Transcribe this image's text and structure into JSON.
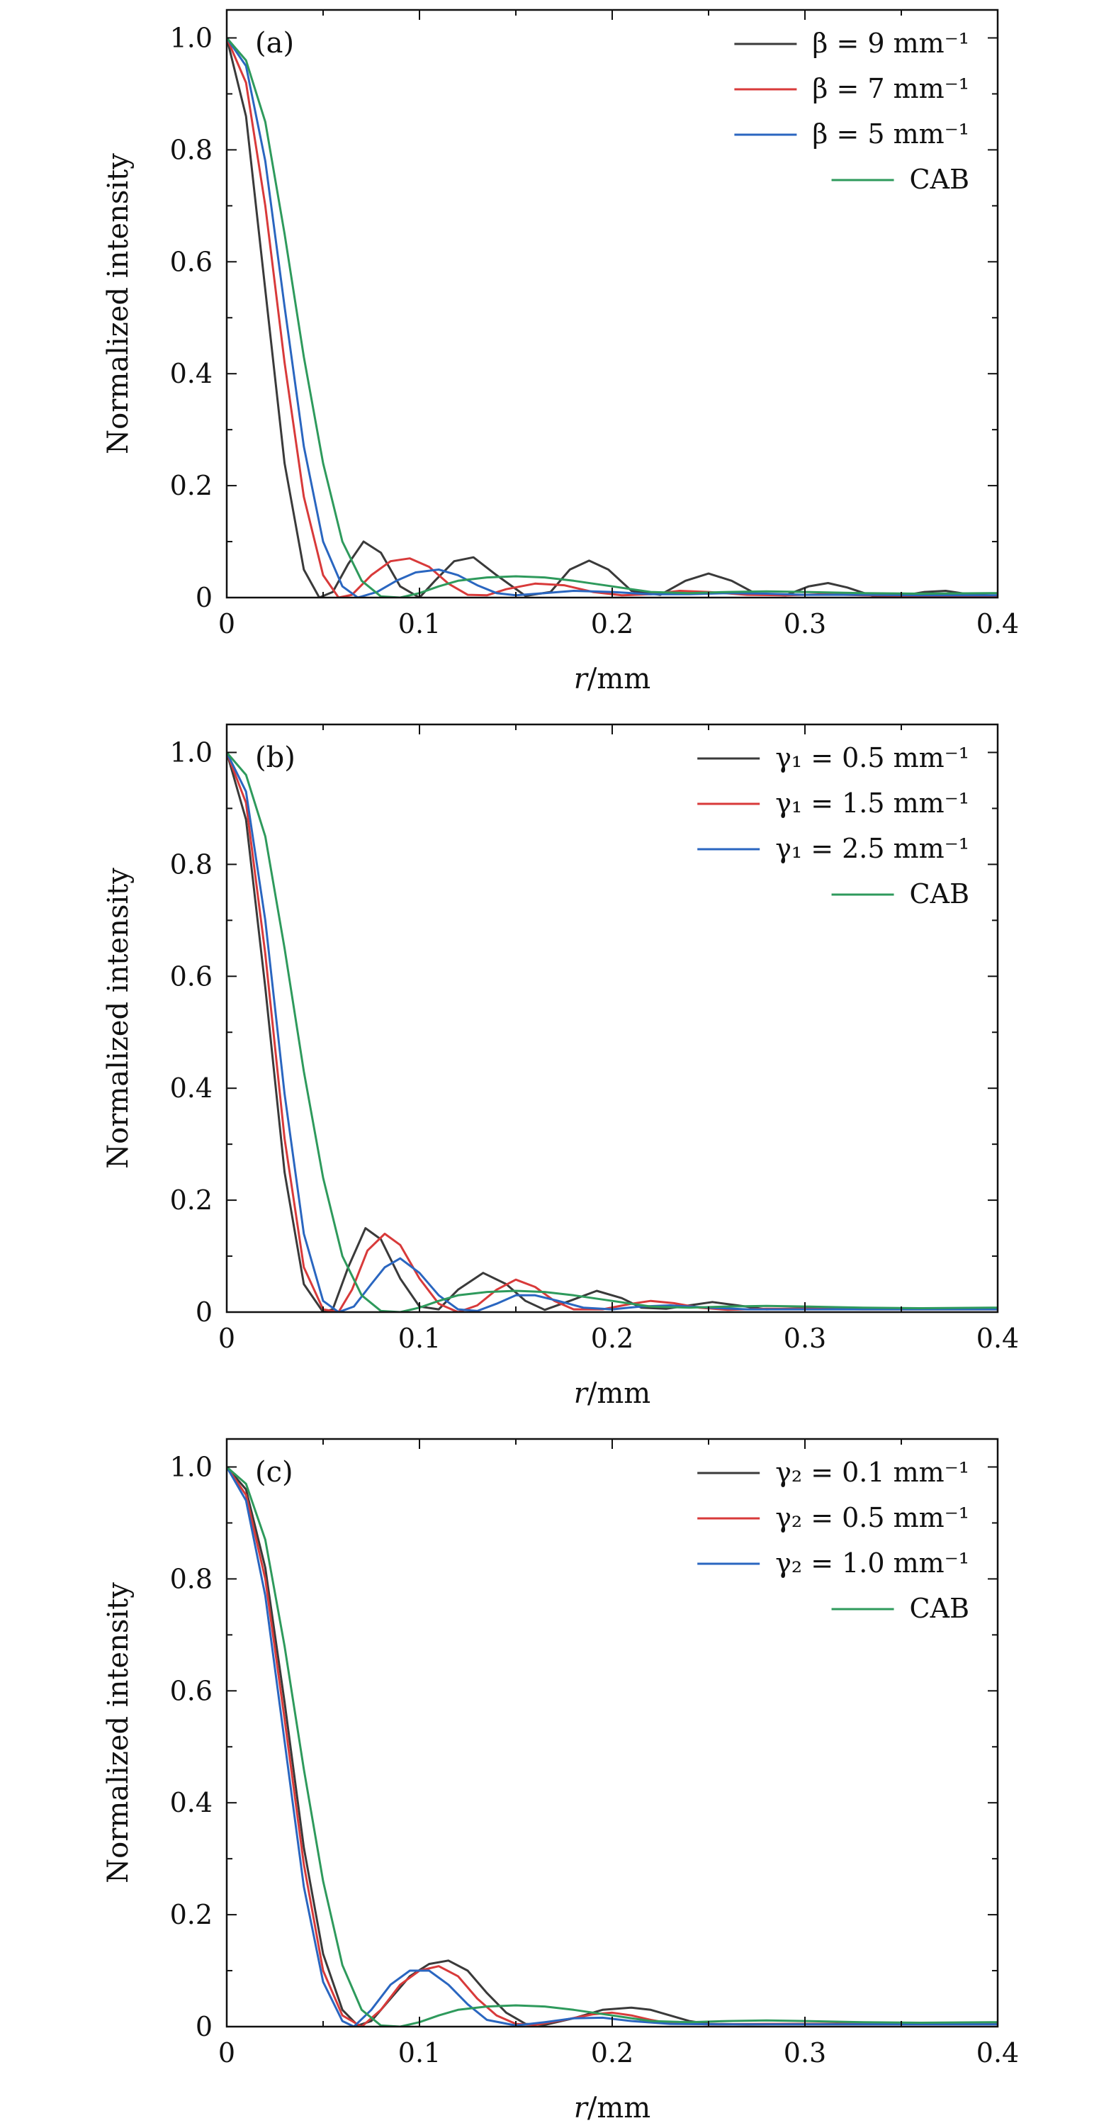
{
  "chart_data": [
    {
      "type": "line",
      "panel_label": "(a)",
      "xlabel": "r/mm",
      "ylabel": "Normalized intensity",
      "xlim": [
        0,
        0.4
      ],
      "ylim": [
        0,
        1.05
      ],
      "x_ticks": [
        "0",
        "0.1",
        "0.2",
        "0.3",
        "0.4"
      ],
      "y_ticks": [
        "0",
        "0.2",
        "0.4",
        "0.6",
        "0.8",
        "1.0"
      ],
      "legend_position": "top-right",
      "series": [
        {
          "name": "β = 9 mm⁻¹",
          "color": "#3a3a3a",
          "x": [
            0,
            0.01,
            0.02,
            0.03,
            0.04,
            0.048,
            0.055,
            0.063,
            0.071,
            0.08,
            0.09,
            0.1,
            0.108,
            0.118,
            0.128,
            0.14,
            0.155,
            0.168,
            0.178,
            0.188,
            0.198,
            0.21,
            0.225,
            0.238,
            0.25,
            0.262,
            0.275,
            0.29,
            0.302,
            0.312,
            0.322,
            0.335,
            0.35,
            0.362,
            0.373,
            0.385,
            0.4
          ],
          "values": [
            1.0,
            0.86,
            0.55,
            0.24,
            0.05,
            0.0,
            0.01,
            0.06,
            0.1,
            0.08,
            0.02,
            0.0,
            0.03,
            0.065,
            0.072,
            0.04,
            0.003,
            0.01,
            0.05,
            0.066,
            0.05,
            0.012,
            0.005,
            0.03,
            0.043,
            0.03,
            0.006,
            0.004,
            0.02,
            0.026,
            0.018,
            0.003,
            0.003,
            0.01,
            0.012,
            0.006,
            0.003
          ]
        },
        {
          "name": "β = 7 mm⁻¹",
          "color": "#d83a3a",
          "x": [
            0,
            0.01,
            0.02,
            0.03,
            0.04,
            0.05,
            0.058,
            0.065,
            0.075,
            0.085,
            0.095,
            0.105,
            0.115,
            0.125,
            0.135,
            0.145,
            0.16,
            0.175,
            0.19,
            0.205,
            0.22,
            0.235,
            0.25,
            0.27,
            0.29,
            0.31,
            0.33,
            0.36,
            0.4
          ],
          "values": [
            1.0,
            0.92,
            0.7,
            0.42,
            0.18,
            0.04,
            0.0,
            0.005,
            0.04,
            0.065,
            0.07,
            0.055,
            0.025,
            0.005,
            0.004,
            0.015,
            0.025,
            0.022,
            0.01,
            0.004,
            0.006,
            0.012,
            0.01,
            0.005,
            0.004,
            0.006,
            0.004,
            0.003,
            0.003
          ]
        },
        {
          "name": "β = 5 mm⁻¹",
          "color": "#2a66c0",
          "x": [
            0,
            0.01,
            0.02,
            0.03,
            0.04,
            0.05,
            0.06,
            0.068,
            0.078,
            0.088,
            0.098,
            0.11,
            0.12,
            0.13,
            0.14,
            0.15,
            0.165,
            0.18,
            0.2,
            0.22,
            0.24,
            0.26,
            0.28,
            0.3,
            0.33,
            0.36,
            0.4
          ],
          "values": [
            1.0,
            0.95,
            0.78,
            0.52,
            0.27,
            0.1,
            0.02,
            0.0,
            0.01,
            0.03,
            0.045,
            0.05,
            0.04,
            0.022,
            0.008,
            0.004,
            0.008,
            0.012,
            0.01,
            0.006,
            0.006,
            0.008,
            0.007,
            0.005,
            0.005,
            0.004,
            0.004
          ]
        },
        {
          "name": "CAB",
          "color": "#2e9a5c",
          "x": [
            0,
            0.01,
            0.02,
            0.03,
            0.04,
            0.05,
            0.06,
            0.07,
            0.08,
            0.09,
            0.1,
            0.11,
            0.12,
            0.135,
            0.15,
            0.165,
            0.18,
            0.2,
            0.22,
            0.24,
            0.26,
            0.28,
            0.3,
            0.33,
            0.36,
            0.4
          ],
          "values": [
            1.0,
            0.96,
            0.85,
            0.65,
            0.43,
            0.24,
            0.1,
            0.03,
            0.002,
            0.0,
            0.008,
            0.02,
            0.03,
            0.036,
            0.038,
            0.036,
            0.03,
            0.02,
            0.01,
            0.008,
            0.01,
            0.011,
            0.01,
            0.008,
            0.007,
            0.008
          ]
        }
      ]
    },
    {
      "type": "line",
      "panel_label": "(b)",
      "xlabel": "r/mm",
      "ylabel": "Normalized intensity",
      "xlim": [
        0,
        0.4
      ],
      "ylim": [
        0,
        1.05
      ],
      "x_ticks": [
        "0",
        "0.1",
        "0.2",
        "0.3",
        "0.4"
      ],
      "y_ticks": [
        "0",
        "0.2",
        "0.4",
        "0.6",
        "0.8",
        "1.0"
      ],
      "legend_position": "top-right",
      "series": [
        {
          "name": "γ₁ = 0.5 mm⁻¹",
          "color": "#3a3a3a",
          "x": [
            0,
            0.01,
            0.02,
            0.03,
            0.04,
            0.05,
            0.055,
            0.063,
            0.072,
            0.08,
            0.09,
            0.1,
            0.11,
            0.12,
            0.133,
            0.145,
            0.155,
            0.165,
            0.178,
            0.192,
            0.205,
            0.215,
            0.228,
            0.24,
            0.252,
            0.265,
            0.28,
            0.3,
            0.33,
            0.36,
            0.4
          ],
          "values": [
            1.0,
            0.88,
            0.58,
            0.25,
            0.05,
            0.0,
            0.005,
            0.08,
            0.15,
            0.13,
            0.06,
            0.01,
            0.005,
            0.04,
            0.07,
            0.05,
            0.02,
            0.004,
            0.02,
            0.038,
            0.025,
            0.008,
            0.006,
            0.012,
            0.018,
            0.012,
            0.005,
            0.007,
            0.006,
            0.006,
            0.006
          ]
        },
        {
          "name": "γ₁ = 1.5 mm⁻¹",
          "color": "#d83a3a",
          "x": [
            0,
            0.01,
            0.02,
            0.03,
            0.04,
            0.05,
            0.058,
            0.065,
            0.073,
            0.082,
            0.09,
            0.1,
            0.11,
            0.12,
            0.13,
            0.14,
            0.15,
            0.16,
            0.17,
            0.18,
            0.195,
            0.21,
            0.22,
            0.232,
            0.245,
            0.26,
            0.28,
            0.3,
            0.33,
            0.36,
            0.4
          ],
          "values": [
            1.0,
            0.91,
            0.64,
            0.31,
            0.08,
            0.005,
            0.0,
            0.04,
            0.11,
            0.14,
            0.12,
            0.06,
            0.015,
            0.0,
            0.012,
            0.04,
            0.058,
            0.045,
            0.02,
            0.005,
            0.005,
            0.015,
            0.02,
            0.016,
            0.008,
            0.004,
            0.006,
            0.006,
            0.005,
            0.005,
            0.005
          ]
        },
        {
          "name": "γ₁ = 2.5 mm⁻¹",
          "color": "#2a66c0",
          "x": [
            0,
            0.01,
            0.02,
            0.03,
            0.04,
            0.05,
            0.058,
            0.066,
            0.075,
            0.082,
            0.09,
            0.1,
            0.11,
            0.12,
            0.13,
            0.14,
            0.15,
            0.16,
            0.172,
            0.185,
            0.2,
            0.215,
            0.23,
            0.25,
            0.27,
            0.3,
            0.33,
            0.36,
            0.4
          ],
          "values": [
            1.0,
            0.93,
            0.7,
            0.39,
            0.14,
            0.02,
            0.0,
            0.01,
            0.05,
            0.08,
            0.096,
            0.07,
            0.03,
            0.005,
            0.002,
            0.015,
            0.03,
            0.03,
            0.02,
            0.008,
            0.005,
            0.01,
            0.012,
            0.008,
            0.005,
            0.005,
            0.005,
            0.005,
            0.005
          ]
        },
        {
          "name": "CAB",
          "color": "#2e9a5c",
          "x": [
            0,
            0.01,
            0.02,
            0.03,
            0.04,
            0.05,
            0.06,
            0.07,
            0.08,
            0.09,
            0.1,
            0.11,
            0.12,
            0.135,
            0.15,
            0.165,
            0.18,
            0.2,
            0.22,
            0.24,
            0.26,
            0.28,
            0.3,
            0.33,
            0.36,
            0.4
          ],
          "values": [
            1.0,
            0.96,
            0.85,
            0.65,
            0.43,
            0.24,
            0.1,
            0.03,
            0.002,
            0.0,
            0.008,
            0.02,
            0.03,
            0.036,
            0.038,
            0.036,
            0.03,
            0.02,
            0.01,
            0.008,
            0.01,
            0.011,
            0.01,
            0.008,
            0.007,
            0.008
          ]
        }
      ]
    },
    {
      "type": "line",
      "panel_label": "(c)",
      "xlabel": "r/mm",
      "ylabel": "Normalized intensity",
      "xlim": [
        0,
        0.4
      ],
      "ylim": [
        0,
        1.05
      ],
      "x_ticks": [
        "0",
        "0.1",
        "0.2",
        "0.3",
        "0.4"
      ],
      "y_ticks": [
        "0",
        "0.2",
        "0.4",
        "0.6",
        "0.8",
        "1.0"
      ],
      "legend_position": "top-right",
      "series": [
        {
          "name": "γ₂ = 0.1 mm⁻¹",
          "color": "#3a3a3a",
          "x": [
            0,
            0.01,
            0.02,
            0.03,
            0.04,
            0.05,
            0.06,
            0.068,
            0.075,
            0.085,
            0.095,
            0.105,
            0.115,
            0.125,
            0.135,
            0.145,
            0.155,
            0.165,
            0.18,
            0.195,
            0.21,
            0.22,
            0.23,
            0.24,
            0.25,
            0.27,
            0.3,
            0.33,
            0.36,
            0.4
          ],
          "values": [
            1.0,
            0.96,
            0.82,
            0.58,
            0.32,
            0.13,
            0.03,
            0.002,
            0.01,
            0.05,
            0.09,
            0.112,
            0.118,
            0.1,
            0.06,
            0.025,
            0.005,
            0.003,
            0.015,
            0.03,
            0.034,
            0.03,
            0.02,
            0.01,
            0.005,
            0.004,
            0.005,
            0.005,
            0.005,
            0.005
          ]
        },
        {
          "name": "γ₂ = 0.5 mm⁻¹",
          "color": "#d83a3a",
          "x": [
            0,
            0.01,
            0.02,
            0.03,
            0.04,
            0.05,
            0.06,
            0.07,
            0.08,
            0.09,
            0.1,
            0.11,
            0.12,
            0.13,
            0.14,
            0.15,
            0.16,
            0.175,
            0.19,
            0.2,
            0.21,
            0.22,
            0.23,
            0.25,
            0.28,
            0.3,
            0.33,
            0.36,
            0.4
          ],
          "values": [
            1.0,
            0.95,
            0.8,
            0.55,
            0.29,
            0.1,
            0.02,
            0.0,
            0.03,
            0.075,
            0.1,
            0.108,
            0.09,
            0.05,
            0.02,
            0.005,
            0.003,
            0.012,
            0.022,
            0.025,
            0.02,
            0.012,
            0.006,
            0.004,
            0.005,
            0.005,
            0.005,
            0.005,
            0.005
          ]
        },
        {
          "name": "γ₂ = 1.0 mm⁻¹",
          "color": "#2a66c0",
          "x": [
            0,
            0.01,
            0.02,
            0.03,
            0.04,
            0.05,
            0.06,
            0.066,
            0.075,
            0.085,
            0.095,
            0.105,
            0.115,
            0.125,
            0.135,
            0.15,
            0.165,
            0.18,
            0.195,
            0.21,
            0.23,
            0.26,
            0.3,
            0.33,
            0.36,
            0.4
          ],
          "values": [
            1.0,
            0.94,
            0.77,
            0.51,
            0.25,
            0.08,
            0.01,
            0.0,
            0.03,
            0.075,
            0.1,
            0.1,
            0.075,
            0.04,
            0.012,
            0.002,
            0.008,
            0.015,
            0.016,
            0.01,
            0.005,
            0.004,
            0.004,
            0.004,
            0.004,
            0.004
          ]
        },
        {
          "name": "CAB",
          "color": "#2e9a5c",
          "x": [
            0,
            0.01,
            0.02,
            0.03,
            0.04,
            0.05,
            0.06,
            0.07,
            0.08,
            0.09,
            0.1,
            0.11,
            0.12,
            0.135,
            0.15,
            0.165,
            0.18,
            0.2,
            0.22,
            0.24,
            0.26,
            0.28,
            0.3,
            0.33,
            0.36,
            0.4
          ],
          "values": [
            1.0,
            0.97,
            0.87,
            0.68,
            0.46,
            0.26,
            0.11,
            0.03,
            0.002,
            0.0,
            0.008,
            0.02,
            0.03,
            0.036,
            0.038,
            0.036,
            0.03,
            0.02,
            0.01,
            0.008,
            0.01,
            0.011,
            0.01,
            0.008,
            0.007,
            0.008
          ]
        }
      ]
    }
  ]
}
